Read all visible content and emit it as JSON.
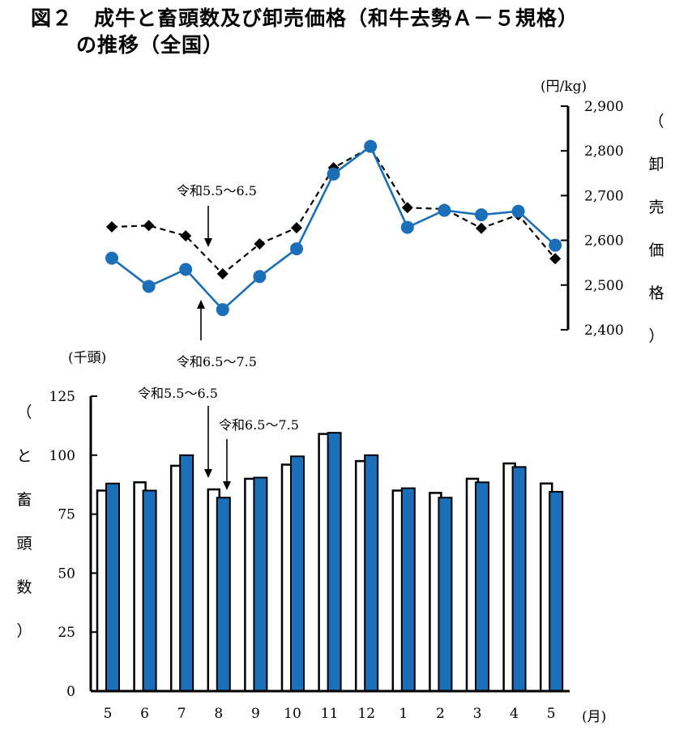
{
  "title": {
    "line1": "図２　成牛と畜頭数及び卸売価格（和牛去勢Ａ－５規格）",
    "line2": "の推移（全国）"
  },
  "chart_data": [
    {
      "type": "line",
      "title": "卸売価格",
      "unit": "(円/kg)",
      "ylabel": [
        "（",
        "卸",
        "売",
        "価",
        "格",
        "）"
      ],
      "ylim": [
        2400,
        2900
      ],
      "yticks": [
        "2,900",
        "2,800",
        "2,700",
        "2,600",
        "2,500",
        "2,400"
      ],
      "categories": [
        "5",
        "6",
        "7",
        "8",
        "9",
        "10",
        "11",
        "12",
        "1",
        "2",
        "3",
        "4",
        "5"
      ],
      "series": [
        {
          "name": "令和5.5～6.5",
          "style": "dashed-diamond",
          "color": "#000000",
          "values": [
            2630,
            2633,
            2610,
            2525,
            2592,
            2628,
            2762,
            2808,
            2673,
            2670,
            2627,
            2657,
            2559
          ]
        },
        {
          "name": "令和6.5～7.5",
          "style": "solid-circle",
          "color": "#1a6fb8",
          "values": [
            2560,
            2497,
            2535,
            2445,
            2519,
            2581,
            2748,
            2810,
            2629,
            2667,
            2657,
            2665,
            2589
          ]
        }
      ],
      "annotations": {
        "prev_label": "令和5.5～6.5",
        "curr_label": "令和6.5～7.5"
      }
    },
    {
      "type": "bar",
      "title": "と畜頭数",
      "unit": "(千頭)",
      "ylabel": [
        "（",
        "と",
        "畜",
        "頭",
        "数",
        "）"
      ],
      "ylim": [
        0,
        125
      ],
      "yticks": [
        "125",
        "100",
        "75",
        "50",
        "25",
        "0"
      ],
      "xlabel": "(月)",
      "categories": [
        "5",
        "6",
        "7",
        "8",
        "9",
        "10",
        "11",
        "12",
        "1",
        "2",
        "3",
        "4",
        "5"
      ],
      "series": [
        {
          "name": "令和5.5～6.5",
          "color": "#ffffff",
          "values": [
            85,
            88.5,
            95.5,
            85.5,
            90,
            96,
            109,
            97.5,
            85,
            84,
            90,
            96.5,
            88
          ]
        },
        {
          "name": "令和6.5～7.5",
          "color": "#1a6fb8",
          "values": [
            88,
            85,
            100,
            82,
            90.5,
            99.5,
            109.5,
            100,
            86,
            82,
            88.5,
            95,
            84.5
          ]
        }
      ],
      "annotations": {
        "prev_label": "令和5.5～6.5",
        "curr_label": "令和6.5～7.5"
      }
    }
  ]
}
